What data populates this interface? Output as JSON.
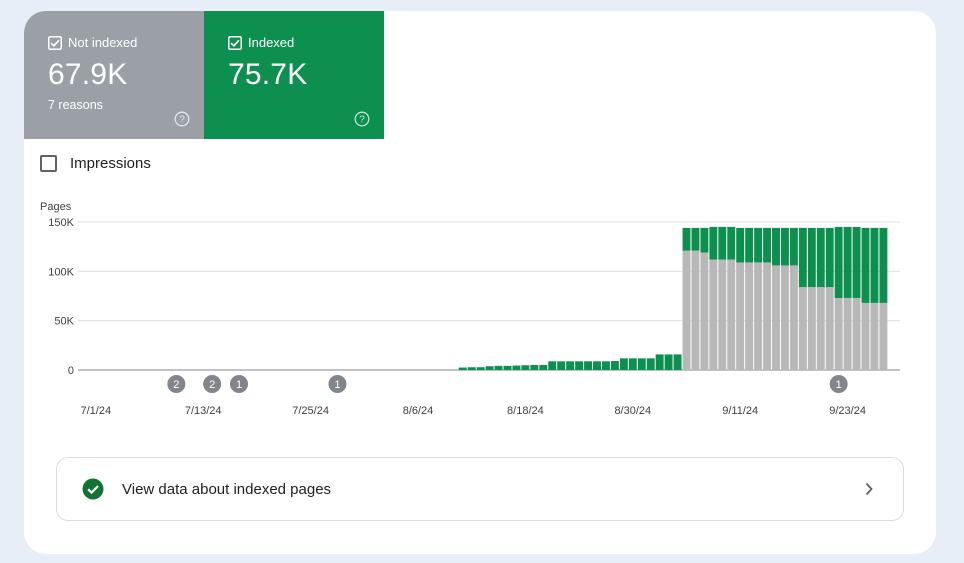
{
  "tiles": [
    {
      "label": "Not indexed",
      "value": "67.9K",
      "sub": "7 reasons",
      "color": "#9aa0a6"
    },
    {
      "label": "Indexed",
      "value": "75.7K",
      "sub": "",
      "color": "#0d904f"
    }
  ],
  "impressions": {
    "label": "Impressions",
    "checked": false
  },
  "chart_data": {
    "type": "bar",
    "stacked": true,
    "ylabel": "Pages",
    "ylim": [
      0,
      150000
    ],
    "yticks": [
      0,
      50000,
      100000,
      150000
    ],
    "ytick_labels": [
      "0",
      "50K",
      "100K",
      "150K"
    ],
    "xtick_labels": [
      "7/1/24",
      "7/13/24",
      "7/25/24",
      "8/6/24",
      "8/18/24",
      "8/30/24",
      "9/11/24",
      "9/23/24"
    ],
    "xtick_day_index": [
      0,
      12,
      24,
      36,
      48,
      60,
      72,
      84
    ],
    "first_bar_day_index": 41,
    "series": [
      {
        "name": "Not indexed",
        "color": "#b8b8b8",
        "values": [
          0,
          0,
          0,
          0,
          0,
          0,
          0,
          0,
          0,
          0,
          0,
          0,
          0,
          0,
          0,
          0,
          0,
          0,
          0,
          0,
          0,
          0,
          0,
          0,
          0,
          121000,
          121000,
          119000,
          112000,
          112000,
          112000,
          109000,
          109000,
          109000,
          109000,
          106000,
          106000,
          106000,
          84000,
          84000,
          84000,
          84000,
          73000,
          73000,
          73000,
          68000,
          68000,
          68000
        ]
      },
      {
        "name": "Indexed",
        "color": "#0d904f",
        "values": [
          2500,
          2800,
          2800,
          3800,
          4200,
          4200,
          4500,
          4800,
          5100,
          5100,
          8800,
          8800,
          8800,
          8800,
          8800,
          8800,
          8800,
          9100,
          11800,
          11800,
          11800,
          11800,
          15800,
          15800,
          15800,
          23000,
          23000,
          25000,
          33000,
          33000,
          33000,
          35000,
          35000,
          35000,
          35000,
          38000,
          38000,
          38000,
          60000,
          60000,
          60000,
          60000,
          72000,
          72000,
          72000,
          76000,
          76000,
          76000
        ]
      }
    ],
    "annotations": [
      {
        "label": "2",
        "day_index": 9
      },
      {
        "label": "2",
        "day_index": 13
      },
      {
        "label": "1",
        "day_index": 16
      },
      {
        "label": "1",
        "day_index": 27
      },
      {
        "label": "1",
        "day_index": 83
      }
    ]
  },
  "view_link": {
    "label": "View data about indexed pages"
  }
}
